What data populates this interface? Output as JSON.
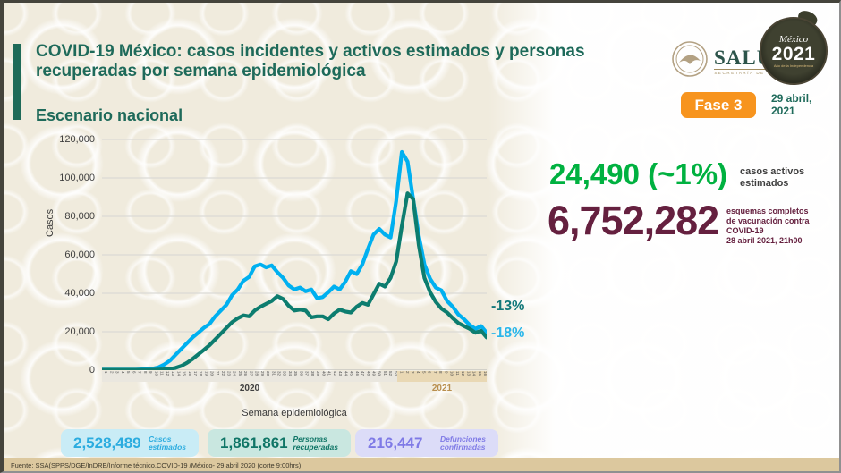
{
  "header": {
    "title": "COVID-19 México: casos incidentes y activos estimados y personas recuperadas por semana epidemiológica",
    "subtitle": "Escenario nacional"
  },
  "logos": {
    "salud": {
      "name": "SALUD",
      "sub": "SECRETARÍA DE SALUD"
    },
    "mexico2021": {
      "top": "México",
      "year": "2021",
      "sub": "Año de la Independencia"
    }
  },
  "phase_badge": {
    "label": "Fase 3",
    "color": "#f7941e"
  },
  "date": {
    "line1": "29 abril,",
    "line2": "2021"
  },
  "chart_data": {
    "type": "line",
    "title": "",
    "xlabel": "Semana epidemiológica",
    "ylabel": "Casos",
    "ylim": [
      0,
      120000
    ],
    "ytick_values": [
      0,
      20000,
      40000,
      60000,
      80000,
      100000,
      120000
    ],
    "ytick_labels": [
      "0",
      "20,000",
      "40,000",
      "60,000",
      "80,000",
      "100,000",
      "120,000"
    ],
    "grid": "horizontal",
    "x_groups": [
      {
        "year": "2020",
        "weeks": [
          1,
          2,
          3,
          4,
          5,
          6,
          7,
          8,
          9,
          10,
          11,
          12,
          13,
          14,
          15,
          16,
          17,
          18,
          19,
          20,
          21,
          22,
          23,
          24,
          25,
          26,
          27,
          28,
          29,
          30,
          31,
          32,
          33,
          34,
          35,
          36,
          37,
          38,
          39,
          40,
          41,
          42,
          43,
          44,
          45,
          46,
          47,
          48,
          49,
          50,
          51,
          52,
          53
        ]
      },
      {
        "year": "2021",
        "weeks": [
          1,
          2,
          3,
          4,
          5,
          6,
          7,
          8,
          9,
          10,
          11,
          12,
          13,
          14,
          15,
          16
        ]
      }
    ],
    "series": [
      {
        "name": "Casos estimados",
        "color": "#00b0f0",
        "values": [
          300,
          300,
          300,
          300,
          300,
          300,
          300,
          400,
          500,
          800,
          1500,
          3000,
          5000,
          8000,
          11000,
          14000,
          17000,
          19500,
          22000,
          24000,
          28000,
          31000,
          34000,
          39000,
          42000,
          46500,
          48500,
          54000,
          55000,
          53500,
          54500,
          51000,
          48000,
          44000,
          42000,
          43000,
          41000,
          42000,
          37500,
          38000,
          40500,
          43500,
          42000,
          46000,
          51500,
          50000,
          55000,
          63000,
          70500,
          73500,
          70500,
          69000,
          88000,
          113500,
          108500,
          89000,
          70000,
          55000,
          47500,
          43000,
          41500,
          36000,
          33000,
          29000,
          26500,
          23500,
          21500,
          23000,
          19500
        ]
      },
      {
        "name": "Personas recuperadas",
        "color": "#0d7d6f",
        "values": [
          200,
          200,
          200,
          200,
          200,
          200,
          200,
          200,
          200,
          200,
          300,
          400,
          600,
          1200,
          2200,
          3800,
          5800,
          8200,
          10500,
          13000,
          16000,
          19000,
          22000,
          25000,
          27000,
          28500,
          28000,
          31000,
          33000,
          34500,
          36000,
          38500,
          37000,
          33500,
          31000,
          31500,
          31000,
          27500,
          28000,
          28000,
          26500,
          29500,
          31500,
          30500,
          30000,
          33000,
          35000,
          34000,
          39500,
          45000,
          43500,
          48000,
          56500,
          75000,
          92000,
          89000,
          65000,
          48000,
          40500,
          35500,
          32000,
          30000,
          27000,
          24500,
          23000,
          21500,
          19500,
          20500,
          17000
        ]
      }
    ],
    "annotations": [
      {
        "text": "-13%",
        "color": "#12787a",
        "series": "Personas recuperadas"
      },
      {
        "text": "-18%",
        "color": "#29b6ea",
        "series": "Casos estimados"
      }
    ],
    "legend_position": "none"
  },
  "right_stats": {
    "active": {
      "value": "24,490 (~1%)",
      "color": "#00b140",
      "label_line1": "casos activos",
      "label_line2": "estimados"
    },
    "vaccination": {
      "value": "6,752,282",
      "color": "#65203f",
      "label_line1": "esquemas completos",
      "label_line2": "de vacunación contra COVID-19",
      "label_line3": "28 abril 2021, 21h00"
    }
  },
  "summary_boxes": [
    {
      "value": "2,528,489",
      "label_line1": "Casos",
      "label_line2": "estimados",
      "value_color": "#2bacdf",
      "bg": "#c9ecf6"
    },
    {
      "value": "1,861,861",
      "label_line1": "Personas",
      "label_line2": "recuperadas",
      "value_color": "#0f7566",
      "bg": "#c9e7e0"
    },
    {
      "value": "216,447",
      "label_line1": "Defunciones",
      "label_line2": "confirmadas",
      "value_color": "#7f7ae6",
      "bg": "#dcdcf8"
    }
  ],
  "footer": {
    "source": "Fuente: SSA(SPPS/DGE/InDRE/Informe técnico.COVID-19 /México- 29 abril 2020 (corte 9:00hrs)"
  }
}
